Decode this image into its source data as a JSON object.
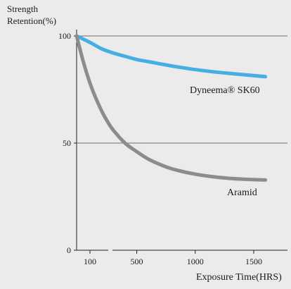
{
  "chart_data": {
    "type": "line",
    "ylabel_lines": [
      "Strength",
      "Retention(%)"
    ],
    "xlabel": "Exposure Time(HRS)",
    "x_ticks": [
      100,
      500,
      1000,
      1500
    ],
    "y_ticks": [
      0,
      50,
      100
    ],
    "ylim": [
      0,
      100
    ],
    "grid": true,
    "series": [
      {
        "name": "Dyneema® SK60",
        "color": "#45aee3",
        "x": [
          0,
          100,
          200,
          300,
          400,
          500,
          600,
          800,
          1000,
          1200,
          1400,
          1600,
          1800
        ],
        "y": [
          100,
          97,
          94,
          92,
          90.5,
          89,
          88,
          86,
          84.3,
          83,
          82,
          81,
          80.5
        ]
      },
      {
        "name": "Aramid",
        "color": "#8c8c8c",
        "x": [
          0,
          50,
          100,
          150,
          200,
          250,
          300,
          400,
          500,
          600,
          700,
          800,
          1000,
          1200,
          1400,
          1600,
          1800
        ],
        "y": [
          100,
          88,
          78,
          71,
          65,
          60,
          56,
          50,
          46,
          42.5,
          40,
          38,
          35.5,
          34,
          33.2,
          32.8,
          32.5
        ]
      }
    ]
  }
}
